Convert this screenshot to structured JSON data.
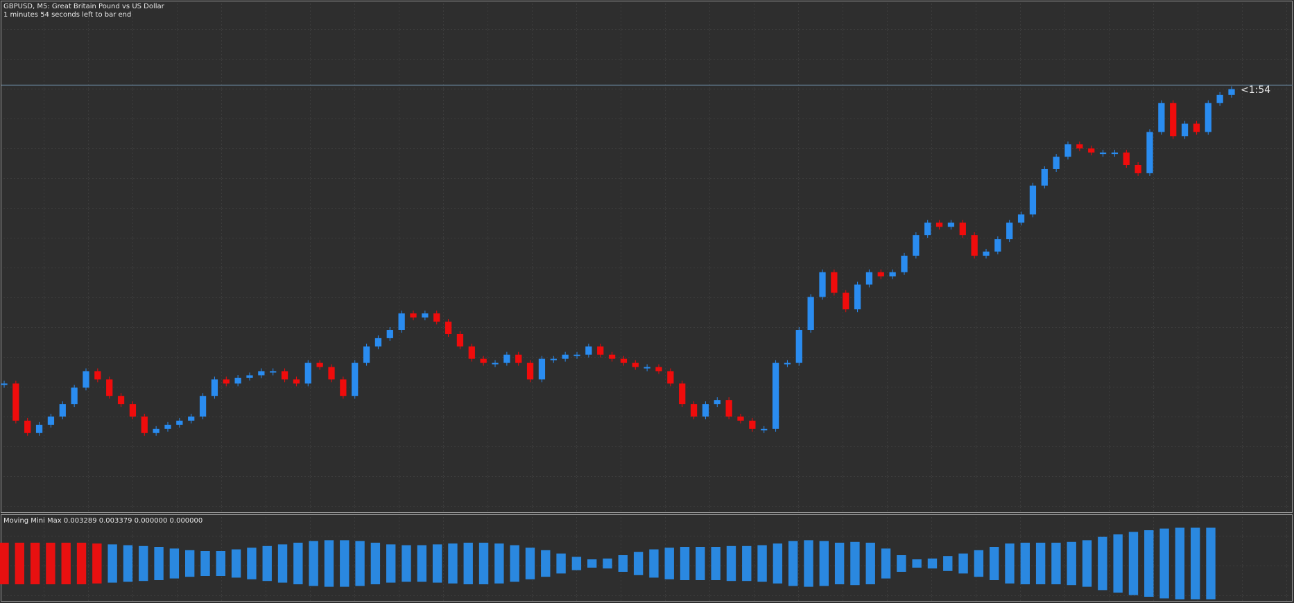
{
  "header": {
    "title": "GBPUSD, M5:  Great Britain Pound vs US Dollar",
    "subtitle": "1 minutes 54 seconds left to bar end",
    "countdown": "<1:54"
  },
  "chart_data": [
    {
      "type": "candles",
      "ylim": [
        0,
        621
      ],
      "up_color": "#2a8cf0",
      "down_color": "#f00c0c",
      "values": [
        156,
        111,
        96,
        106,
        116,
        131,
        151,
        171,
        161,
        141,
        131,
        116,
        96,
        101,
        106,
        111,
        116,
        141,
        161,
        156,
        163,
        166,
        171,
        171,
        161,
        156,
        181,
        176,
        161,
        141,
        181,
        201,
        211,
        221,
        241,
        236,
        241,
        231,
        216,
        201,
        186,
        181,
        181,
        191,
        181,
        161,
        186,
        186,
        191,
        191,
        201,
        191,
        186,
        181,
        176,
        176,
        171,
        156,
        131,
        116,
        131,
        136,
        116,
        111,
        101,
        101,
        181,
        181,
        221,
        261,
        291,
        266,
        246,
        276,
        291,
        286,
        291,
        311,
        336,
        351,
        346,
        351,
        336,
        311,
        316,
        331,
        351,
        361,
        396,
        416,
        431,
        446,
        441,
        436,
        436,
        436,
        421,
        411,
        461,
        496,
        456,
        471,
        461,
        496,
        506,
        513
      ]
    },
    {
      "type": "histogram",
      "title": "Moving Mini Max 0.003289 0.003379 0.000000 0.000000",
      "ylim": [
        0,
        50
      ],
      "series": [
        {
          "color": "#e81010",
          "values": [
            25,
            25,
            25,
            25,
            25,
            25,
            24
          ]
        },
        {
          "color": "#2a88e0",
          "values": [
            23,
            22,
            21,
            20,
            18,
            16,
            15,
            15,
            17,
            19,
            21,
            23,
            25,
            27,
            28,
            28,
            27,
            25,
            23,
            22,
            22,
            23,
            24,
            25,
            25,
            24,
            22,
            19,
            16,
            12,
            8,
            5,
            6,
            10,
            14,
            17,
            19,
            20,
            20,
            20,
            21,
            21,
            22,
            24,
            27,
            28,
            27,
            25,
            26,
            25,
            18,
            10,
            5,
            6,
            9,
            12,
            16,
            20,
            24,
            25,
            25,
            25,
            26,
            28,
            32,
            35,
            38,
            40,
            42,
            43,
            43,
            43
          ]
        }
      ]
    }
  ]
}
